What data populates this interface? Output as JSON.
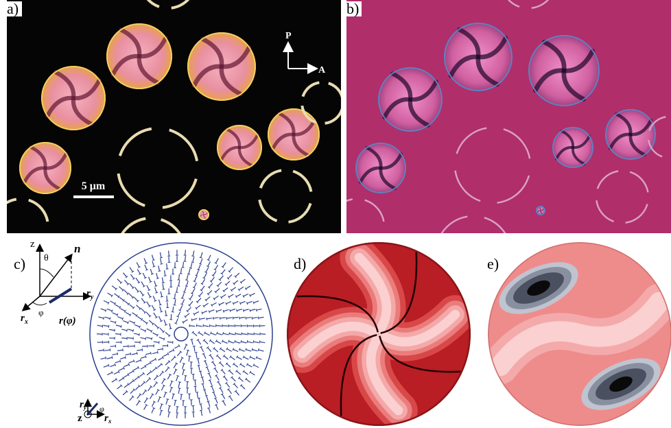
{
  "panels": {
    "a": {
      "label": "a)",
      "polarizer": "P",
      "analyzer": "A",
      "scale_bar": "5 μm"
    },
    "b": {
      "label": "b)"
    },
    "c": {
      "label": "c)",
      "axes": {
        "z": "z",
        "theta": "θ",
        "n": "n",
        "ry": {
          "main": "r",
          "sub": "y"
        },
        "rx": {
          "main": "r",
          "sub": "x"
        },
        "phi": "φ",
        "r_phi": "r(φ)"
      },
      "inset": {
        "ry": {
          "main": "r",
          "sub": "y"
        },
        "rx": {
          "main": "r",
          "sub": "x"
        },
        "z": "z",
        "phi": "φ"
      }
    },
    "d": {
      "label": "d)"
    },
    "e": {
      "label": "e)"
    }
  }
}
